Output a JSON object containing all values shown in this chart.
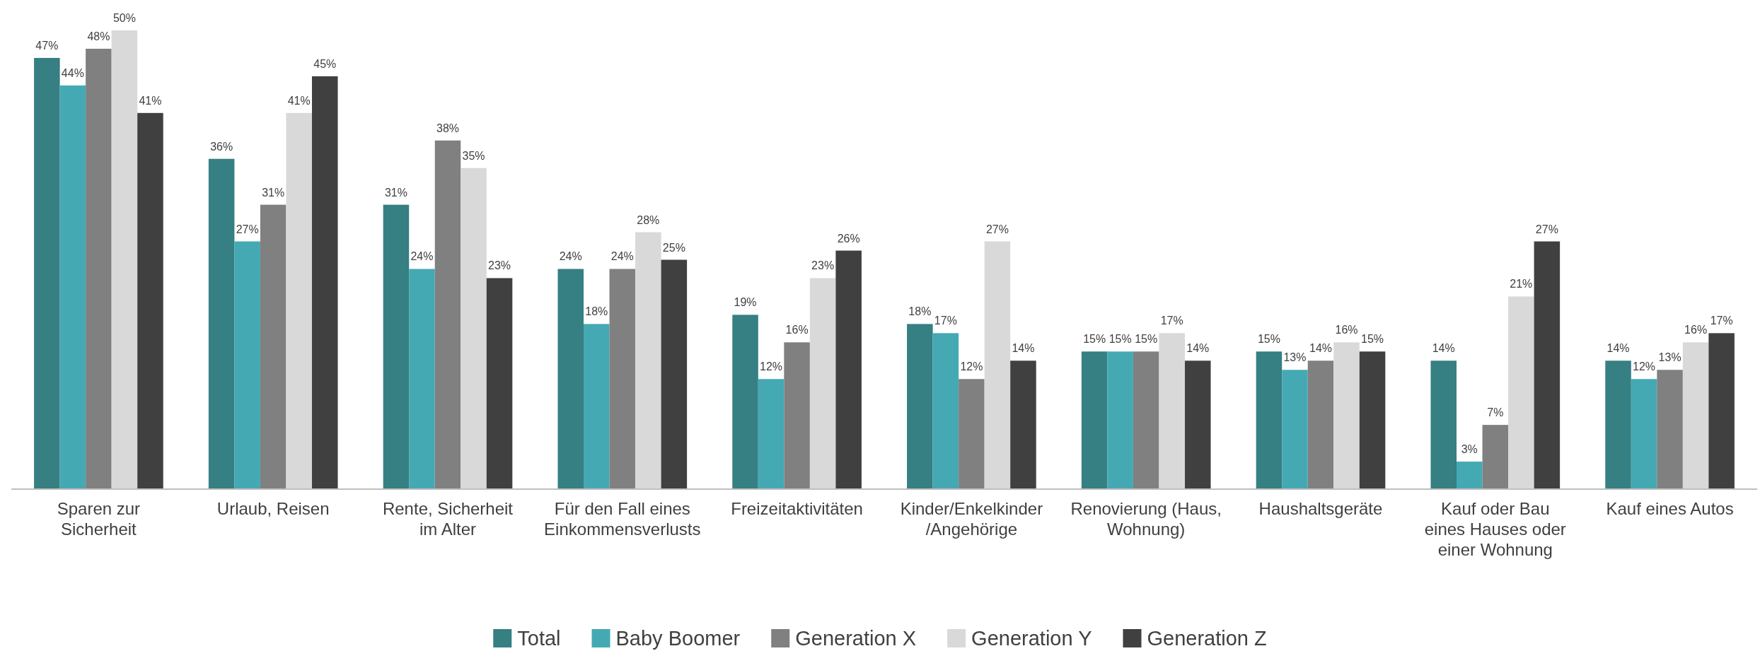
{
  "chart_data": {
    "type": "bar",
    "categories": [
      "Sparen zur Sicherheit",
      "Urlaub, Reisen",
      "Rente, Sicherheit im Alter",
      "Für den Fall eines Einkommensverlusts",
      "Freizeitaktivitäten",
      "Kinder/Enkelkinder /Angehörige",
      "Renovierung (Haus, Wohnung)",
      "Haushaltsgeräte",
      "Kauf oder Bau eines Hauses oder einer Wohnung",
      "Kauf eines Autos"
    ],
    "series": [
      {
        "name": "Total",
        "color": "#367f83",
        "values": [
          47,
          36,
          31,
          24,
          19,
          18,
          15,
          15,
          14,
          14
        ],
        "value_labels": [
          "47%",
          "36%",
          "31%",
          "24%",
          "19%",
          "18%",
          "15%",
          "15%",
          "14%",
          "14%"
        ]
      },
      {
        "name": "Baby Boomer",
        "color": "#45a9b4",
        "values": [
          44,
          27,
          24,
          18,
          12,
          17,
          15,
          13,
          3,
          12
        ],
        "value_labels": [
          "44%",
          "27%",
          "24%",
          "18%",
          "12%",
          "17%",
          "15%",
          "13%",
          "3%",
          "12%"
        ]
      },
      {
        "name": "Generation X",
        "color": "#808080",
        "values": [
          48,
          31,
          38,
          24,
          16,
          12,
          15,
          14,
          7,
          13
        ],
        "value_labels": [
          "48%",
          "31%",
          "38%",
          "24%",
          "16%",
          "12%",
          "15%",
          "14%",
          "7%",
          "13%"
        ]
      },
      {
        "name": "Generation Y",
        "color": "#d9d9d9",
        "values": [
          50,
          41,
          35,
          28,
          23,
          27,
          17,
          16,
          21,
          16
        ],
        "value_labels": [
          "50%",
          "41%",
          "35%",
          "28%",
          "23%",
          "27%",
          "17%",
          "16%",
          "21%",
          "16%"
        ]
      },
      {
        "name": "Generation Z",
        "color": "#404040",
        "values": [
          41,
          45,
          23,
          25,
          26,
          14,
          14,
          15,
          27,
          17
        ],
        "value_labels": [
          "41%",
          "45%",
          "23%",
          "25%",
          "26%",
          "14%",
          "14%",
          "15%",
          "27%",
          "17%"
        ]
      }
    ],
    "legend": "bottom",
    "grid": false,
    "tick_labels": "x"
  }
}
